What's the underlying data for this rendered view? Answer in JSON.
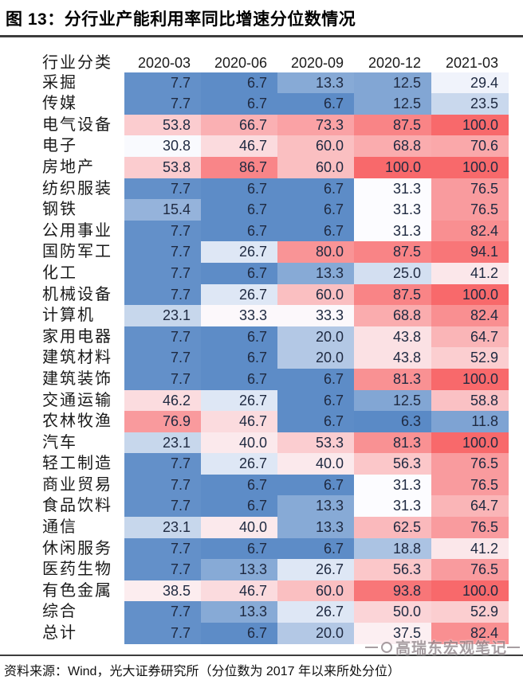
{
  "title": "图 13：分行业产能利用率同比增速分位数情况",
  "chart_data": {
    "type": "heatmap",
    "row_header": "行业分类",
    "columns": [
      "2020-03",
      "2020-06",
      "2020-09",
      "2020-12",
      "2021-03"
    ],
    "rows": [
      {
        "name": "采掘",
        "values": [
          7.7,
          6.7,
          13.3,
          12.5,
          29.4
        ]
      },
      {
        "name": "传媒",
        "values": [
          7.7,
          6.7,
          6.7,
          12.5,
          23.5
        ]
      },
      {
        "name": "电气设备",
        "values": [
          53.8,
          66.7,
          73.3,
          87.5,
          100.0
        ]
      },
      {
        "name": "电子",
        "values": [
          30.8,
          46.7,
          60.0,
          68.8,
          70.6
        ]
      },
      {
        "name": "房地产",
        "values": [
          53.8,
          86.7,
          60.0,
          100.0,
          100.0
        ]
      },
      {
        "name": "纺织服装",
        "values": [
          7.7,
          6.7,
          6.7,
          31.3,
          76.5
        ]
      },
      {
        "name": "钢铁",
        "values": [
          15.4,
          6.7,
          6.7,
          31.3,
          76.5
        ]
      },
      {
        "name": "公用事业",
        "values": [
          7.7,
          6.7,
          6.7,
          31.3,
          82.4
        ]
      },
      {
        "name": "国防军工",
        "values": [
          7.7,
          26.7,
          80.0,
          87.5,
          94.1
        ]
      },
      {
        "name": "化工",
        "values": [
          7.7,
          6.7,
          13.3,
          25.0,
          41.2
        ]
      },
      {
        "name": "机械设备",
        "values": [
          7.7,
          26.7,
          60.0,
          87.5,
          100.0
        ]
      },
      {
        "name": "计算机",
        "values": [
          23.1,
          33.3,
          33.3,
          68.8,
          82.4
        ]
      },
      {
        "name": "家用电器",
        "values": [
          7.7,
          6.7,
          20.0,
          43.8,
          64.7
        ]
      },
      {
        "name": "建筑材料",
        "values": [
          7.7,
          6.7,
          20.0,
          43.8,
          52.9
        ]
      },
      {
        "name": "建筑装饰",
        "values": [
          7.7,
          6.7,
          6.7,
          81.3,
          100.0
        ]
      },
      {
        "name": "交通运输",
        "values": [
          46.2,
          26.7,
          6.7,
          12.5,
          58.8
        ]
      },
      {
        "name": "农林牧渔",
        "values": [
          76.9,
          46.7,
          6.7,
          6.3,
          11.8
        ]
      },
      {
        "name": "汽车",
        "values": [
          23.1,
          40.0,
          53.3,
          81.3,
          100.0
        ]
      },
      {
        "name": "轻工制造",
        "values": [
          7.7,
          26.7,
          40.0,
          56.3,
          76.5
        ]
      },
      {
        "name": "商业贸易",
        "values": [
          7.7,
          6.7,
          6.7,
          31.3,
          76.5
        ]
      },
      {
        "name": "食品饮料",
        "values": [
          7.7,
          6.7,
          13.3,
          31.3,
          64.7
        ]
      },
      {
        "name": "通信",
        "values": [
          23.1,
          40.0,
          13.3,
          62.5,
          76.5
        ]
      },
      {
        "name": "休闲服务",
        "values": [
          7.7,
          6.7,
          6.7,
          18.8,
          41.2
        ]
      },
      {
        "name": "医药生物",
        "values": [
          7.7,
          13.3,
          26.7,
          56.3,
          76.5
        ]
      },
      {
        "name": "有色金属",
        "values": [
          38.5,
          46.7,
          60.0,
          93.8,
          100.0
        ]
      },
      {
        "name": "综合",
        "values": [
          7.7,
          13.3,
          26.7,
          50.0,
          52.9
        ]
      },
      {
        "name": "总计",
        "values": [
          7.7,
          6.7,
          20.0,
          37.5,
          82.4
        ]
      }
    ],
    "color_scale": {
      "min": 6.3,
      "mid": 31.3,
      "max": 100,
      "min_color": "#5A8AC6",
      "mid_color": "#FCFCFF",
      "max_color": "#F8696B"
    },
    "value_decimals": 1,
    "legend_position": "none",
    "grid": false
  },
  "footer": {
    "source": "资料来源：Wind，光大证券研究所（分位数为 2017 年以来所处分位）"
  },
  "watermark": {
    "text": "高瑞东宏观笔记"
  }
}
